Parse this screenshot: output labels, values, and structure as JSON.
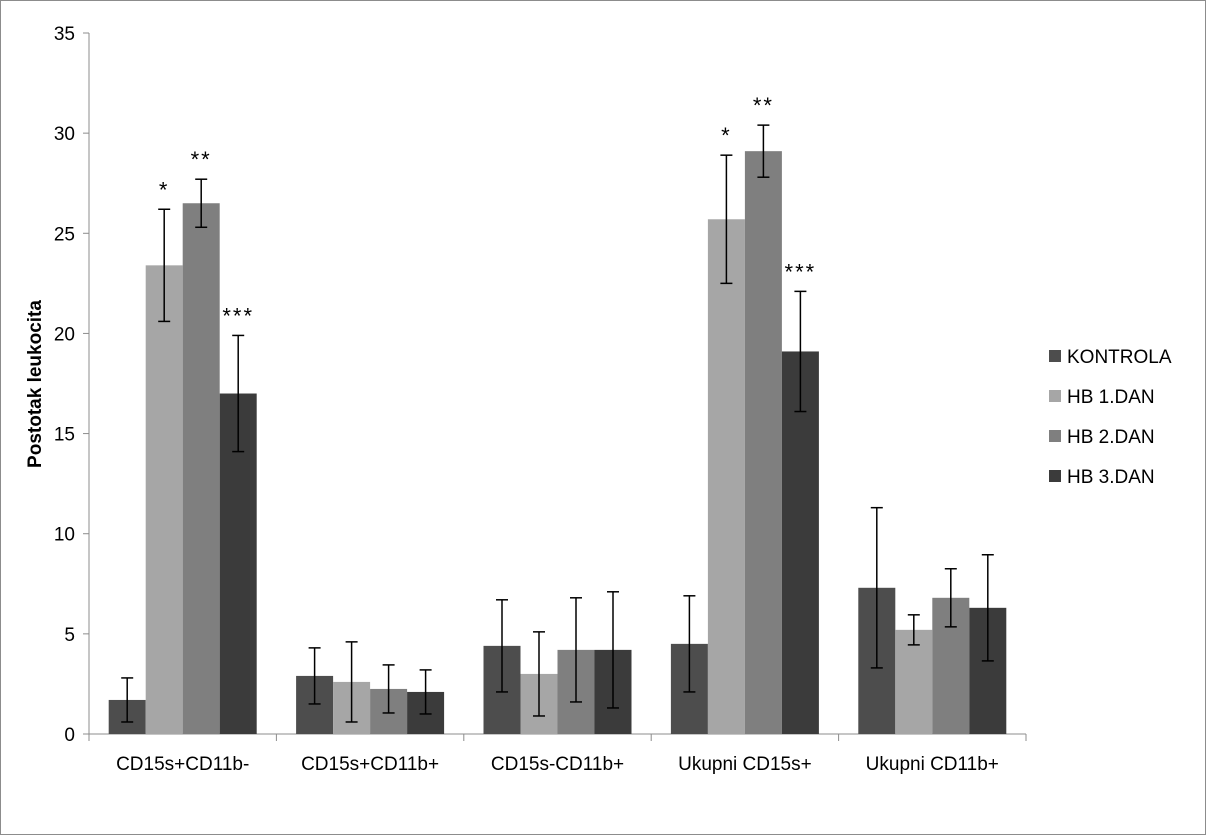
{
  "chart_data": {
    "type": "bar",
    "title": "",
    "xlabel": "",
    "ylabel": "Postotak leukocita",
    "ylim": [
      0,
      35
    ],
    "yticks": [
      0,
      5,
      10,
      15,
      20,
      25,
      30,
      35
    ],
    "grid": false,
    "legend_position": "right",
    "categories": [
      "CD15s+CD11b-",
      "CD15s+CD11b+",
      "CD15s-CD11b+",
      "Ukupni CD15s+",
      "Ukupni CD11b+"
    ],
    "series": [
      {
        "name": "KONTROLA",
        "color": "#4d4d4d",
        "values": [
          1.7,
          2.9,
          4.4,
          4.5,
          7.3
        ],
        "errors": [
          1.1,
          1.4,
          2.3,
          2.4,
          4.0
        ]
      },
      {
        "name": "HB 1.DAN",
        "color": "#a6a6a6",
        "values": [
          23.4,
          2.6,
          3.0,
          25.7,
          5.2
        ],
        "errors": [
          2.8,
          2.0,
          2.1,
          3.2,
          0.75
        ]
      },
      {
        "name": "HB 2.DAN",
        "color": "#7f7f7f",
        "values": [
          26.5,
          2.25,
          4.2,
          29.1,
          6.8
        ],
        "errors": [
          1.2,
          1.2,
          2.6,
          1.3,
          1.45
        ]
      },
      {
        "name": "HB 3.DAN",
        "color": "#3b3b3b",
        "values": [
          17.0,
          2.1,
          4.2,
          19.1,
          6.3
        ],
        "errors": [
          2.9,
          1.1,
          2.9,
          3.0,
          2.65
        ]
      }
    ],
    "annotations": [
      {
        "category": "CD15s+CD11b-",
        "series": "HB 1.DAN",
        "text": "*"
      },
      {
        "category": "CD15s+CD11b-",
        "series": "HB 2.DAN",
        "text": "**"
      },
      {
        "category": "CD15s+CD11b-",
        "series": "HB 3.DAN",
        "text": "***"
      },
      {
        "category": "Ukupni CD15s+",
        "series": "HB 1.DAN",
        "text": "*"
      },
      {
        "category": "Ukupni CD15s+",
        "series": "HB 2.DAN",
        "text": "**"
      },
      {
        "category": "Ukupni CD15s+",
        "series": "HB 3.DAN",
        "text": "***"
      }
    ]
  }
}
